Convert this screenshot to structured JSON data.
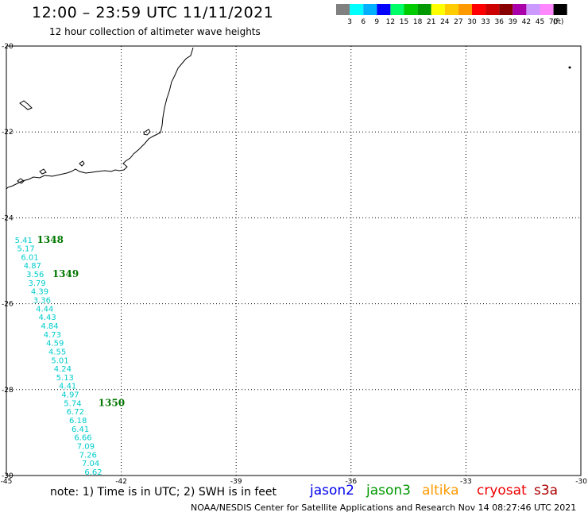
{
  "header": {
    "title": "12:00 – 23:59 UTC 11/11/2021",
    "subtitle": "12 hour collection of altimeter wave heights"
  },
  "legend": {
    "colors": [
      "#808080",
      "#00ffff",
      "#00b0ff",
      "#0000ff",
      "#00ff66",
      "#00cc00",
      "#009900",
      "#ffff00",
      "#ffcc00",
      "#ff9900",
      "#ff0000",
      "#cc0000",
      "#880000",
      "#aa00aa",
      "#cc99ff",
      "#ff88ff",
      "#000000"
    ],
    "labels": [
      "3",
      "6",
      "9",
      "12",
      "15",
      "18",
      "21",
      "24",
      "27",
      "30",
      "33",
      "36",
      "39",
      "42",
      "45",
      "70"
    ],
    "unit": "(ft)"
  },
  "map": {
    "lat_labels": [
      "-20",
      "-22",
      "-24",
      "-26",
      "-28",
      "-30"
    ],
    "lon_labels": [
      "-45",
      "-42",
      "-39",
      "-36",
      "-33",
      "-30"
    ],
    "lat_values": [
      -20,
      -22,
      -24,
      -26,
      -28,
      -30
    ],
    "lon_values": [
      -45,
      -42,
      -39,
      -36,
      -33,
      -30
    ]
  },
  "observations": [
    {
      "lon": -44.78,
      "lat": -24.58,
      "swh": "5.41"
    },
    {
      "lon": -44.72,
      "lat": -24.78,
      "swh": "5.17"
    },
    {
      "lon": -44.62,
      "lat": -24.98,
      "swh": "6.01"
    },
    {
      "lon": -44.55,
      "lat": -25.18,
      "swh": "4.87"
    },
    {
      "lon": -44.48,
      "lat": -25.38,
      "swh": "3.56"
    },
    {
      "lon": -44.43,
      "lat": -25.58,
      "swh": "3.79"
    },
    {
      "lon": -44.36,
      "lat": -25.78,
      "swh": "4.39"
    },
    {
      "lon": -44.3,
      "lat": -25.98,
      "swh": "3.36"
    },
    {
      "lon": -44.23,
      "lat": -26.18,
      "swh": "4.44"
    },
    {
      "lon": -44.16,
      "lat": -26.38,
      "swh": "4.43"
    },
    {
      "lon": -44.1,
      "lat": -26.58,
      "swh": "4.84"
    },
    {
      "lon": -44.03,
      "lat": -26.78,
      "swh": "4.73"
    },
    {
      "lon": -43.96,
      "lat": -26.98,
      "swh": "4.59"
    },
    {
      "lon": -43.9,
      "lat": -27.18,
      "swh": "4.55"
    },
    {
      "lon": -43.83,
      "lat": -27.38,
      "swh": "5.01"
    },
    {
      "lon": -43.76,
      "lat": -27.58,
      "swh": "4.24"
    },
    {
      "lon": -43.7,
      "lat": -27.78,
      "swh": "5.13"
    },
    {
      "lon": -43.63,
      "lat": -27.98,
      "swh": "4.41"
    },
    {
      "lon": -43.56,
      "lat": -28.18,
      "swh": "4.97"
    },
    {
      "lon": -43.5,
      "lat": -28.38,
      "swh": "5.74"
    },
    {
      "lon": -43.43,
      "lat": -28.58,
      "swh": "6.72"
    },
    {
      "lon": -43.36,
      "lat": -28.78,
      "swh": "6.18"
    },
    {
      "lon": -43.3,
      "lat": -28.98,
      "swh": "6.41"
    },
    {
      "lon": -43.23,
      "lat": -29.18,
      "swh": "6.66"
    },
    {
      "lon": -43.16,
      "lat": -29.38,
      "swh": "7.09"
    },
    {
      "lon": -43.1,
      "lat": -29.58,
      "swh": "7.26"
    },
    {
      "lon": -43.03,
      "lat": -29.78,
      "swh": "7.04"
    },
    {
      "lon": -42.96,
      "lat": -29.98,
      "swh": "6.62"
    }
  ],
  "passes": [
    {
      "lon": -44.2,
      "lat": -24.58,
      "label": "1348"
    },
    {
      "lon": -43.8,
      "lat": -25.38,
      "label": "1349"
    },
    {
      "lon": -42.6,
      "lat": -28.38,
      "label": "1350"
    }
  ],
  "footer": {
    "note": "note:  1) Time is in UTC;  2) SWH is in feet",
    "credit": "NOAA/NESDIS Center for Satellite Applications and Research     Nov 14 08:27:46 UTC 2021",
    "satellites": [
      {
        "name": "jason2",
        "color": "#0000ee"
      },
      {
        "name": "jason3",
        "color": "#009900"
      },
      {
        "name": "altika",
        "color": "#ff9900"
      },
      {
        "name": "cryosat",
        "color": "#ee0000"
      },
      {
        "name": "s3a",
        "color": "#aa0000"
      }
    ]
  }
}
